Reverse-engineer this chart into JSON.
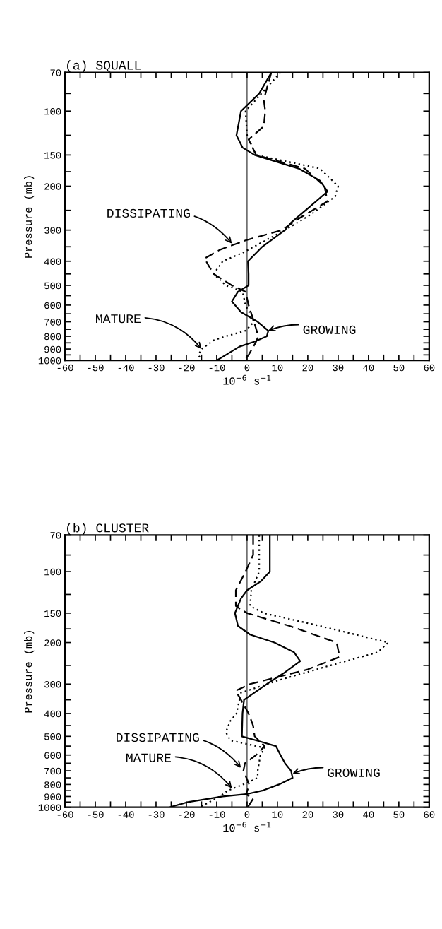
{
  "chart_data": [
    {
      "type": "line",
      "title": "(a) SQUALL",
      "xlabel": "10$^{−6}$ s$^{−1}$",
      "ylabel": "Pressure (mb)",
      "log": "y",
      "xlim": [
        -60,
        60
      ],
      "ylim": [
        1000,
        70
      ],
      "xticks": [
        -60,
        {
          "value": -55,
          "label": null
        },
        -50,
        {
          "value": -45,
          "label": null
        },
        -40,
        {
          "value": -35,
          "label": null
        },
        -30,
        {
          "value": -25,
          "label": null
        },
        -20,
        {
          "value": -15,
          "label": null
        },
        -10,
        {
          "value": -5,
          "label": null
        },
        0,
        {
          "value": 5,
          "label": null
        },
        10,
        {
          "value": 15,
          "label": null
        },
        20,
        {
          "value": 25,
          "label": null
        },
        30,
        {
          "value": 35,
          "label": null
        },
        40,
        {
          "value": 45,
          "label": null
        },
        50,
        {
          "value": 55,
          "label": null
        },
        60
      ],
      "yticks": [
        70,
        {
          "value": 85,
          "label": null
        },
        100,
        {
          "value": 125,
          "label": null
        },
        150,
        {
          "value": 175,
          "label": null
        },
        200,
        {
          "value": 250,
          "label": null
        },
        300,
        {
          "value": 350,
          "label": null
        },
        400,
        {
          "value": 450,
          "label": null
        },
        500,
        {
          "value": 550,
          "label": null
        },
        600,
        {
          "value": 650,
          "label": null
        },
        700,
        {
          "value": 750,
          "label": null
        },
        800,
        {
          "value": 850,
          "label": null
        },
        900,
        {
          "value": 950,
          "label": null
        },
        1000
      ],
      "ref_lines": [
        {
          "axis": "x",
          "value": 0,
          "color": "#000000"
        }
      ],
      "series": [
        {
          "color": "#000000",
          "line_style": "solid",
          "x": [
            8,
            4,
            -2,
            -3.5,
            -1.5,
            2.5,
            17,
            24,
            26.5,
            21,
            14.5,
            12.5,
            5,
            0.3,
            0.5,
            0.5,
            -3,
            -5,
            -2,
            3.5,
            7,
            6.5,
            2.5,
            -2.5,
            -7,
            -10
          ],
          "values": [
            70,
            85,
            100,
            125,
            140,
            150,
            170,
            190,
            210,
            240,
            280,
            300,
            350,
            400,
            450,
            500,
            530,
            580,
            640,
            700,
            760,
            800,
            840,
            880,
            950,
            1000
          ]
        },
        {
          "color": "#000000",
          "line_style": "dotted",
          "x": [
            11,
            -0.5,
            0,
            3,
            24,
            30,
            29,
            21,
            12.5,
            -1.5,
            -8,
            -11,
            -7,
            -1.5,
            -0.5,
            2.3,
            -0.5,
            -7,
            -11,
            -15,
            -16,
            -15
          ],
          "values": [
            70,
            100,
            125,
            150,
            170,
            200,
            220,
            260,
            300,
            370,
            400,
            450,
            500,
            530,
            600,
            700,
            760,
            800,
            830,
            900,
            950,
            1000
          ]
        },
        {
          "color": "#000000",
          "line_style": "dashed",
          "x": [
            8,
            5.5,
            6,
            5.5,
            0.5,
            3,
            19,
            25.5,
            26.5,
            17,
            11.5,
            -0.5,
            -9,
            -14,
            -12.5,
            -11,
            -5,
            -0.5,
            0.5,
            2.3,
            3.7,
            2.8,
            0.5,
            -1
          ],
          "values": [
            70,
            90,
            100,
            115,
            130,
            150,
            170,
            200,
            230,
            270,
            300,
            330,
            360,
            390,
            420,
            450,
            500,
            530,
            600,
            700,
            800,
            850,
            950,
            1000
          ]
        }
      ],
      "annotations": [
        {
          "text": "DISSIPATING",
          "x": -5,
          "y": 340
        },
        {
          "text": "GROWING",
          "x": 7,
          "y": 760
        },
        {
          "text": "MATURE",
          "x": -15,
          "y": 900
        }
      ]
    },
    {
      "type": "line",
      "title": "(b) CLUSTER",
      "xlabel": "10$^{−6}$ s$^{−1}$",
      "ylabel": "Pressure (mb)",
      "log": "y",
      "xlim": [
        -60,
        60
      ],
      "ylim": [
        1000,
        70
      ],
      "xticks": [
        -60,
        {
          "value": -55,
          "label": null
        },
        -50,
        {
          "value": -45,
          "label": null
        },
        -40,
        {
          "value": -35,
          "label": null
        },
        -30,
        {
          "value": -25,
          "label": null
        },
        -20,
        {
          "value": -15,
          "label": null
        },
        -10,
        {
          "value": -5,
          "label": null
        },
        0,
        {
          "value": 5,
          "label": null
        },
        10,
        {
          "value": 15,
          "label": null
        },
        20,
        {
          "value": 25,
          "label": null
        },
        30,
        {
          "value": 35,
          "label": null
        },
        40,
        {
          "value": 45,
          "label": null
        },
        50,
        {
          "value": 55,
          "label": null
        },
        60
      ],
      "yticks": [
        70,
        {
          "value": 85,
          "label": null
        },
        100,
        {
          "value": 125,
          "label": null
        },
        150,
        {
          "value": 175,
          "label": null
        },
        200,
        {
          "value": 250,
          "label": null
        },
        300,
        {
          "value": 350,
          "label": null
        },
        400,
        {
          "value": 450,
          "label": null
        },
        500,
        {
          "value": 550,
          "label": null
        },
        600,
        {
          "value": 650,
          "label": null
        },
        700,
        {
          "value": 750,
          "label": null
        },
        800,
        {
          "value": 850,
          "label": null
        },
        900,
        {
          "value": 950,
          "label": null
        },
        1000
      ],
      "ref_lines": [
        {
          "axis": "x",
          "value": 0,
          "color": "#000000"
        }
      ],
      "series": [
        {
          "color": "#000000",
          "line_style": "solid",
          "x": [
            7.5,
            7.5,
            4.5,
            0,
            -2,
            -4,
            -3,
            1,
            9,
            15.5,
            17.5,
            12,
            6.5,
            -1,
            -1.5,
            -1.7,
            3,
            9.5,
            11,
            12.5,
            14.5,
            15,
            10.5,
            5,
            -0.3,
            -8,
            -19.5,
            -25.5
          ],
          "values": [
            70,
            100,
            110,
            120,
            130,
            150,
            170,
            185,
            200,
            220,
            240,
            270,
            300,
            350,
            400,
            500,
            520,
            550,
            600,
            650,
            700,
            750,
            800,
            850,
            880,
            900,
            950,
            1000
          ]
        },
        {
          "color": "#000000",
          "line_style": "dotted",
          "x": [
            4,
            4,
            1.4,
            1,
            5.5,
            24,
            46.5,
            43,
            27.5,
            10,
            -3,
            -2.5,
            -3.5,
            -5.5,
            -7,
            -5.5,
            5.8,
            4.4,
            3.5,
            3.5,
            -0.3,
            -6.4,
            -9,
            -12.4,
            -15.7
          ],
          "values": [
            70,
            100,
            120,
            140,
            150,
            170,
            200,
            220,
            250,
            290,
            330,
            350,
            400,
            430,
            480,
            520,
            560,
            600,
            700,
            750,
            790,
            850,
            900,
            950,
            1000
          ]
        },
        {
          "color": "#000000",
          "line_style": "dashed",
          "x": [
            2,
            2,
            -0.5,
            -3.7,
            -3.7,
            0,
            14,
            29.5,
            30.5,
            20,
            1,
            -3.7,
            -2,
            0.5,
            2,
            2.5,
            5.8,
            3,
            -0.7,
            -1.2,
            0.7,
            -0.3,
            2,
            0.2
          ],
          "values": [
            70,
            85,
            100,
            120,
            140,
            150,
            170,
            200,
            230,
            260,
            300,
            320,
            350,
            400,
            450,
            500,
            550,
            600,
            650,
            700,
            800,
            880,
            920,
            1000
          ]
        }
      ],
      "annotations": [
        {
          "text": "DISSIPATING",
          "x": -2,
          "y": 680
        },
        {
          "text": "GROWING",
          "x": 15,
          "y": 720
        },
        {
          "text": "MATURE",
          "x": -5,
          "y": 830
        }
      ]
    }
  ]
}
